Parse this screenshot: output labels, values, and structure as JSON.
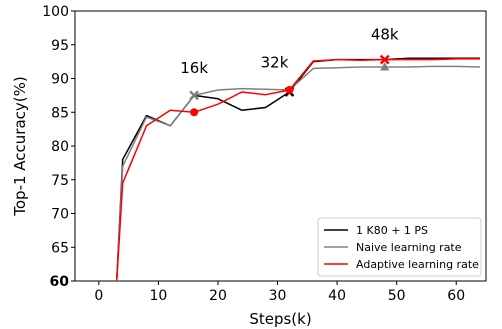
{
  "chart_data": {
    "type": "line",
    "title": "",
    "xlabel": "Steps(k)",
    "ylabel": "Top-1 Accuracy(%)",
    "xlim": [
      -4,
      65
    ],
    "ylim": [
      60,
      100
    ],
    "x_ticks": [
      0,
      10,
      20,
      30,
      40,
      50,
      60
    ],
    "y_ticks": [
      60,
      65,
      70,
      75,
      80,
      85,
      90,
      95,
      100
    ],
    "grid": false,
    "legend_position": "bottom-right",
    "series": [
      {
        "name": "1 K80 + 1 PS",
        "color": "#000000",
        "points": [
          [
            3,
            60
          ],
          [
            4,
            78
          ],
          [
            8,
            84.5
          ],
          [
            12,
            83
          ],
          [
            16,
            87.5
          ],
          [
            20,
            87
          ],
          [
            24,
            85.3
          ],
          [
            28,
            85.7
          ],
          [
            32,
            88
          ],
          [
            36,
            92.5
          ],
          [
            40,
            92.8
          ],
          [
            44,
            92.8
          ],
          [
            48,
            92.8
          ],
          [
            52,
            93
          ],
          [
            56,
            93
          ],
          [
            60,
            93
          ],
          [
            64,
            93
          ]
        ]
      },
      {
        "name": "Naive learning rate",
        "color": "#808080",
        "points": [
          [
            3,
            60
          ],
          [
            4,
            77
          ],
          [
            8,
            84.3
          ],
          [
            12,
            83
          ],
          [
            16,
            87.5
          ],
          [
            20,
            88.3
          ],
          [
            24,
            88.5
          ],
          [
            28,
            88.4
          ],
          [
            32,
            88.3
          ],
          [
            36,
            91.5
          ],
          [
            40,
            91.6
          ],
          [
            44,
            91.7
          ],
          [
            48,
            91.7
          ],
          [
            52,
            91.7
          ],
          [
            56,
            91.8
          ],
          [
            60,
            91.8
          ],
          [
            64,
            91.7
          ]
        ]
      },
      {
        "name": "Adaptive learning rate",
        "color": "#ff0000",
        "points": [
          [
            3,
            60
          ],
          [
            4,
            74.5
          ],
          [
            8,
            83
          ],
          [
            12,
            85.3
          ],
          [
            16,
            85
          ],
          [
            20,
            86.2
          ],
          [
            24,
            88
          ],
          [
            28,
            87.6
          ],
          [
            32,
            88.3
          ],
          [
            36,
            92.6
          ],
          [
            40,
            92.8
          ],
          [
            44,
            92.7
          ],
          [
            48,
            92.8
          ],
          [
            52,
            92.8
          ],
          [
            56,
            92.8
          ],
          [
            60,
            92.9
          ],
          [
            64,
            92.9
          ]
        ]
      }
    ],
    "markers": [
      {
        "series": 1,
        "x": 16,
        "y": 87.5,
        "symbol": "x"
      },
      {
        "series": 2,
        "x": 16,
        "y": 85,
        "symbol": "dot"
      },
      {
        "series": 0,
        "x": 32,
        "y": 88,
        "symbol": "x"
      },
      {
        "series": 2,
        "x": 32,
        "y": 88.3,
        "symbol": "dot"
      },
      {
        "series": 1,
        "x": 48,
        "y": 91.7,
        "symbol": "triangle"
      },
      {
        "series": 2,
        "x": 48,
        "y": 92.8,
        "symbol": "x"
      }
    ],
    "annotations": [
      {
        "text": "16k",
        "x": 16,
        "y": 90.8
      },
      {
        "text": "32k",
        "x": 29.5,
        "y": 91.6
      },
      {
        "text": "48k",
        "x": 48,
        "y": 95.8
      }
    ]
  }
}
